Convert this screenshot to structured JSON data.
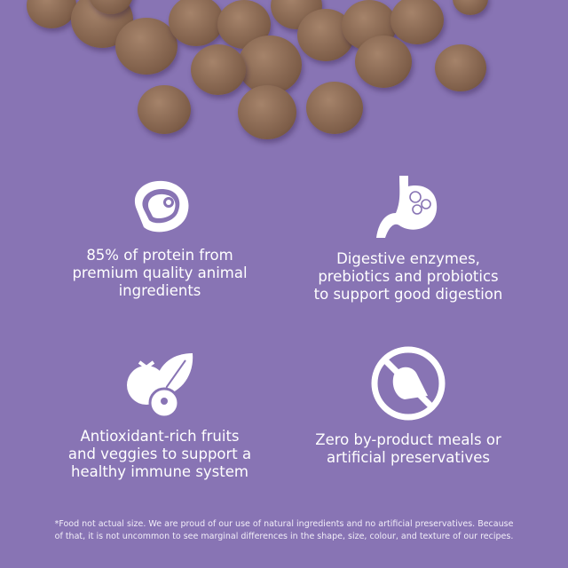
{
  "background_color": "#8874b4",
  "features": [
    {
      "icon": "meat-steak-icon",
      "text": "85% of protein from premium quality animal ingredients",
      "lines": [
        "85% of protein from",
        "premium quality animal",
        "ingredients"
      ]
    },
    {
      "icon": "stomach-digestion-icon",
      "text": "Digestive enzymes, prebiotics and probiotics to support good digestion",
      "lines": [
        "Digestive enzymes,",
        "prebiotics and probiotics",
        "to support good digestion"
      ]
    },
    {
      "icon": "fruit-leaf-icon",
      "text": "Antioxidant-rich fruits and veggies to support a healthy immune system",
      "lines": [
        "Antioxidant-rich fruits",
        "and veggies to support a",
        "healthy immune system"
      ]
    },
    {
      "icon": "no-by-product-icon",
      "text": "Zero by-product meals or artificial preservatives",
      "lines": [
        "Zero by-product meals or",
        "artificial preservatives"
      ]
    }
  ],
  "footnote": {
    "lines": [
      "*Food not actual size. We are proud of our use of natural ingredients and no artificial preservatives. Because",
      "of that, it is not uncommon to see marginal differences in the shape, size, colour, and texture of our recipes."
    ]
  }
}
